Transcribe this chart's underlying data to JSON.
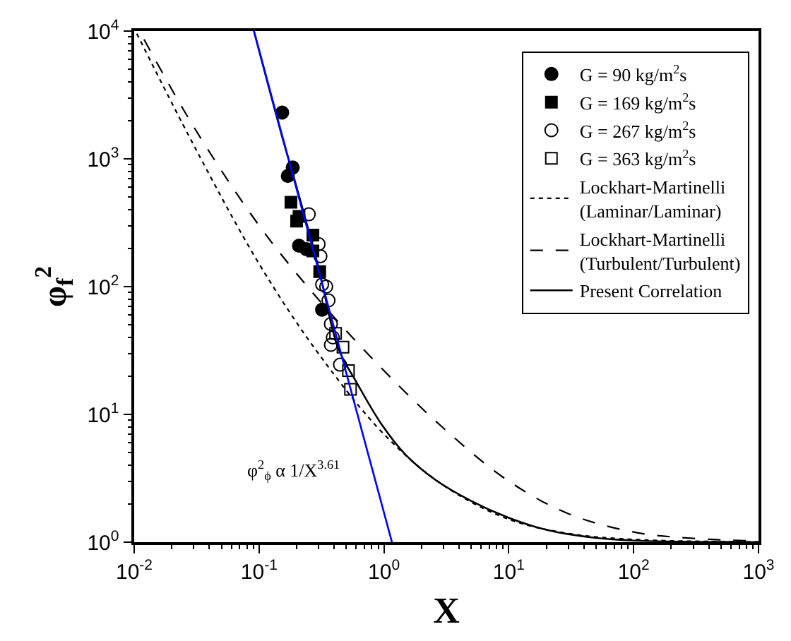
{
  "chart_data": {
    "type": "scatter",
    "xlabel": "X",
    "ylabel": "φ$_{f}$$^{2}$",
    "log": "xy",
    "legend": "top right",
    "xlim": [
      0.01,
      1000
    ],
    "ylim": [
      1,
      10000
    ],
    "xticks": [
      {
        "value": 0.01,
        "label": "10$^{-2}$"
      },
      {
        "value": 0.1,
        "label": "10$^{-1}$"
      },
      {
        "value": 1,
        "label": "10$^{0}$"
      },
      {
        "value": 10,
        "label": "10$^{1}$"
      },
      {
        "value": 100,
        "label": "10$^{2}$"
      },
      {
        "value": 1000,
        "label": "10$^{3}$"
      }
    ],
    "yticks": [
      {
        "value": 1,
        "label": "10$^{0}$"
      },
      {
        "value": 10,
        "label": "10$^{1}$"
      },
      {
        "value": 100,
        "label": "10$^{2}$"
      },
      {
        "value": 1000,
        "label": "10$^{3}$"
      },
      {
        "value": 10000,
        "label": "10$^{4}$"
      }
    ],
    "series": [
      {
        "name": "G = 90 kg/m$^{2}$s",
        "marker": "circle",
        "color": "#000000",
        "x": [
          0.153,
          0.186,
          0.17,
          0.209,
          0.24,
          0.32
        ],
        "values": [
          2300,
          855,
          735,
          209,
          196,
          66
        ]
      },
      {
        "name": "G = 169 kg/m$^{2}$s",
        "marker": "square",
        "color": "#000000",
        "x": [
          0.18,
          0.209,
          0.2,
          0.27,
          0.306,
          0.27
        ],
        "values": [
          457,
          355,
          325,
          190,
          131,
          253
        ]
      },
      {
        "name": "G = 267 kg/m$^{2}$s",
        "marker": "circle-open",
        "color": "#000000",
        "x": [
          0.25,
          0.3,
          0.31,
          0.32,
          0.345,
          0.36,
          0.376,
          0.39,
          0.376,
          0.445
        ],
        "values": [
          368,
          215,
          173,
          104,
          100,
          78,
          51,
          40,
          35,
          24.5
        ]
      },
      {
        "name": "G = 363 kg/m$^{2}$s",
        "marker": "square-open",
        "color": "#000000",
        "x": [
          0.41,
          0.47,
          0.52,
          0.54
        ],
        "values": [
          43,
          33.6,
          22,
          15.7
        ]
      },
      {
        "name": "Lockhart-Martinelli\n(Laminar/Laminar)",
        "type": "line",
        "line_style": "dotted",
        "marker": "none",
        "color": "#000000",
        "x": [
          0.0105,
          0.03,
          0.1,
          0.3,
          1,
          3,
          10,
          30,
          100,
          1000
        ],
        "values": [
          9547,
          1278,
          151,
          29.8,
          7,
          2.78,
          1.51,
          1.17,
          1.05,
          1.005
        ]
      },
      {
        "name": "Lockhart-Martinelli\n(Turbulent/Turbulent)",
        "type": "line",
        "line_style": "dashed",
        "marker": "none",
        "color": "#000000",
        "x": [
          0.012,
          0.03,
          0.1,
          0.3,
          1,
          3,
          10,
          30,
          100,
          300,
          1000
        ],
        "values": [
          8600,
          1779,
          301,
          79,
          22,
          7.8,
          3.0,
          1.67,
          1.2,
          1.07,
          1.02
        ]
      },
      {
        "name": "Present Correlation",
        "type": "line",
        "line_style": "solid",
        "marker": "none",
        "color": "#000000",
        "x": [
          0.091,
          0.15,
          0.2,
          0.3,
          0.43,
          0.6,
          0.97,
          1.5,
          2.55,
          5,
          10,
          20,
          50,
          100,
          1000
        ],
        "values": [
          10000,
          1600,
          600,
          140,
          33,
          18,
          8.2,
          4.8,
          3.1,
          2.1,
          1.55,
          1.25,
          1.08,
          1.03,
          1.0
        ]
      },
      {
        "type": "line",
        "line_style": "solid",
        "marker": "none",
        "color": "#0000ff",
        "x": [
          0.091,
          1.16
        ],
        "values": [
          10000,
          1
        ]
      }
    ],
    "annotations": [
      "φ$^{2}$$_{ϕ}$ α 1/X$^{3.61}$"
    ]
  }
}
